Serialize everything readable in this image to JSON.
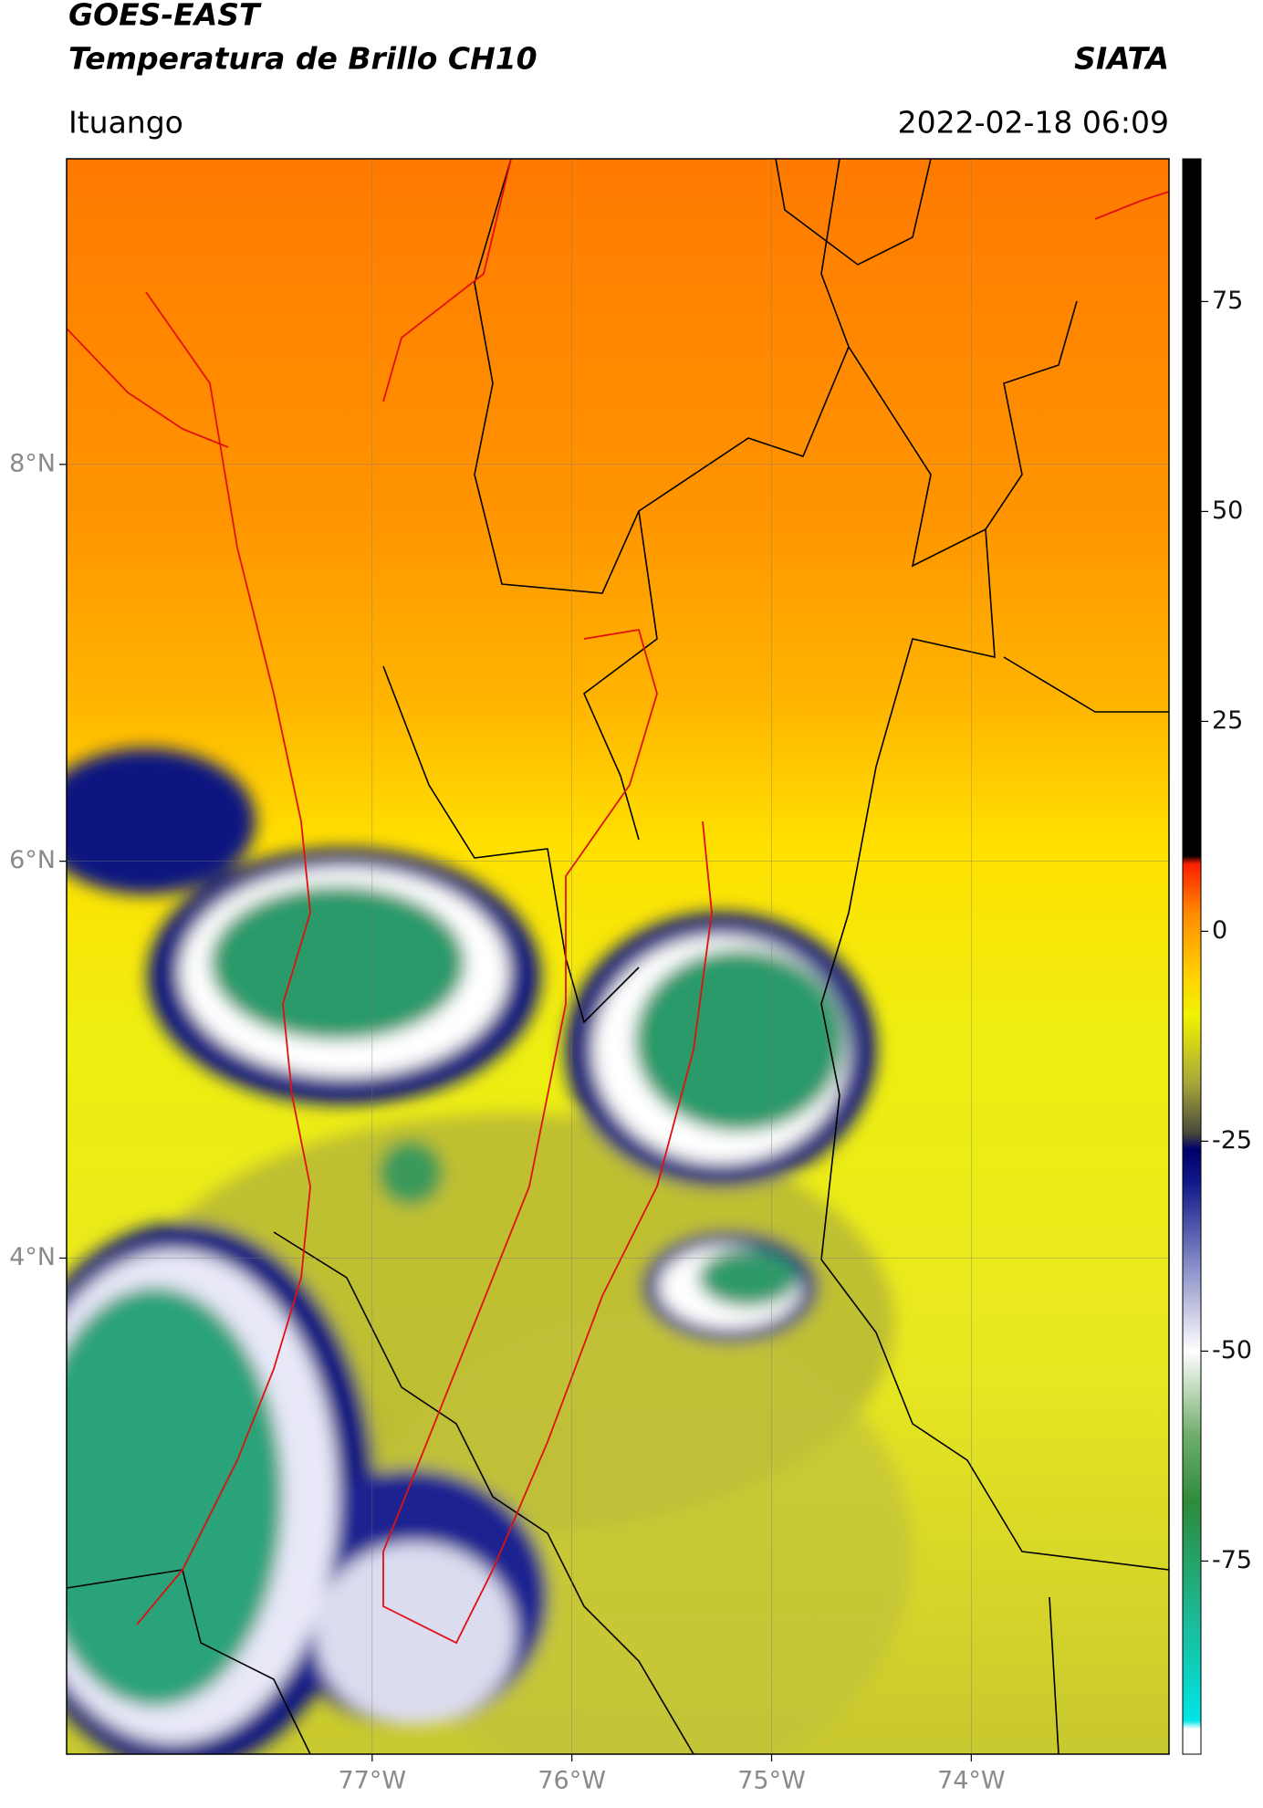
{
  "header": {
    "title": "GOES-EAST",
    "subtitle": "Temperatura de Brillo CH10",
    "source": "SIATA",
    "location": "Ituango",
    "datetime": "2022-02-18 06:09"
  },
  "map": {
    "xlim": [
      -78.53,
      -73.01
    ],
    "ylim": [
      1.5,
      9.54
    ],
    "xticks": [
      {
        "value": -77,
        "label": "77°W"
      },
      {
        "value": -76,
        "label": "76°W"
      },
      {
        "value": -75,
        "label": "75°W"
      },
      {
        "value": -74,
        "label": "74°W"
      }
    ],
    "yticks": [
      {
        "value": 8,
        "label": "8°N"
      },
      {
        "value": 6,
        "label": "6°N"
      },
      {
        "value": 4,
        "label": "4°N"
      }
    ],
    "grid": true
  },
  "colorbar": {
    "lim": [
      -98,
      92
    ],
    "ticks": [
      75,
      50,
      25,
      0,
      -25,
      -50,
      -75
    ],
    "stops": [
      {
        "value": -98,
        "color": "#ffffff"
      },
      {
        "value": -95,
        "color": "#ffffff"
      },
      {
        "value": -94,
        "color": "#00e5e5"
      },
      {
        "value": -80,
        "color": "#1fb38a"
      },
      {
        "value": -68,
        "color": "#2e8b3a"
      },
      {
        "value": -60,
        "color": "#6fae6a"
      },
      {
        "value": -50,
        "color": "#ffffff"
      },
      {
        "value": -40,
        "color": "#8a8fc8"
      },
      {
        "value": -30,
        "color": "#101a8a"
      },
      {
        "value": -26,
        "color": "#00006a"
      },
      {
        "value": -24,
        "color": "#4a4a3a"
      },
      {
        "value": -18,
        "color": "#a8a83a"
      },
      {
        "value": -10,
        "color": "#f2f200"
      },
      {
        "value": -5,
        "color": "#ffd000"
      },
      {
        "value": 2,
        "color": "#ff8c00"
      },
      {
        "value": 8,
        "color": "#ff2000"
      },
      {
        "value": 9,
        "color": "#000000"
      },
      {
        "value": 92,
        "color": "#000000"
      }
    ]
  }
}
